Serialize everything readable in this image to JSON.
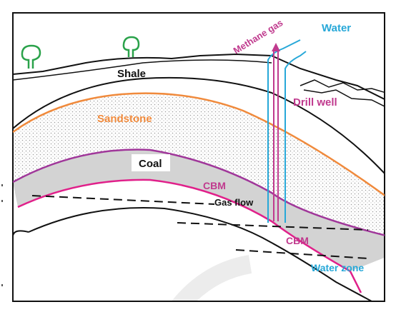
{
  "labels": {
    "shale": "Shale",
    "sandstone": "Sandstone",
    "coal": "Coal",
    "cbm_upper": "CBM",
    "cbm_lower": "CBM",
    "gas_flow": "Gas flow",
    "drill_well": "Drill well",
    "methane_gas": "Methane gas",
    "water": "Water",
    "water_zone": "Water zone"
  },
  "colors": {
    "frame": "#111111",
    "sandstone_line": "#f08a3c",
    "coal_line": "#a0379a",
    "cbm_line": "#e0208a",
    "water": "#27a8d8",
    "methane": "#c03a8e",
    "tree": "#2aa24a",
    "coal_fill": "#d3d3d3"
  }
}
